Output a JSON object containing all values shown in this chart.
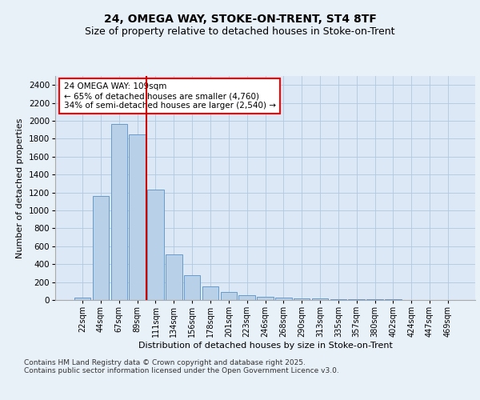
{
  "title1": "24, OMEGA WAY, STOKE-ON-TRENT, ST4 8TF",
  "title2": "Size of property relative to detached houses in Stoke-on-Trent",
  "xlabel": "Distribution of detached houses by size in Stoke-on-Trent",
  "ylabel": "Number of detached properties",
  "bin_labels": [
    "22sqm",
    "44sqm",
    "67sqm",
    "89sqm",
    "111sqm",
    "134sqm",
    "156sqm",
    "178sqm",
    "201sqm",
    "223sqm",
    "246sqm",
    "268sqm",
    "290sqm",
    "313sqm",
    "335sqm",
    "357sqm",
    "380sqm",
    "402sqm",
    "424sqm",
    "447sqm",
    "469sqm"
  ],
  "bar_values": [
    30,
    1160,
    1960,
    1850,
    1230,
    510,
    275,
    155,
    90,
    50,
    40,
    28,
    15,
    15,
    10,
    5,
    5,
    5,
    3,
    3,
    2
  ],
  "bar_color": "#b8d0e8",
  "bar_edge_color": "#6699cc",
  "vline_x_index": 4,
  "vline_color": "#cc0000",
  "annotation_line1": "24 OMEGA WAY: 109sqm",
  "annotation_line2": "← 65% of detached houses are smaller (4,760)",
  "annotation_line3": "34% of semi-detached houses are larger (2,540) →",
  "ylim_max": 2500,
  "yticks": [
    0,
    200,
    400,
    600,
    800,
    1000,
    1200,
    1400,
    1600,
    1800,
    2000,
    2200,
    2400
  ],
  "bg_color": "#dce8f5",
  "fig_bg_color": "#e8f0f8",
  "grid_color": "#b0c8e0",
  "footer_line1": "Contains HM Land Registry data © Crown copyright and database right 2025.",
  "footer_line2": "Contains public sector information licensed under the Open Government Licence v3.0."
}
